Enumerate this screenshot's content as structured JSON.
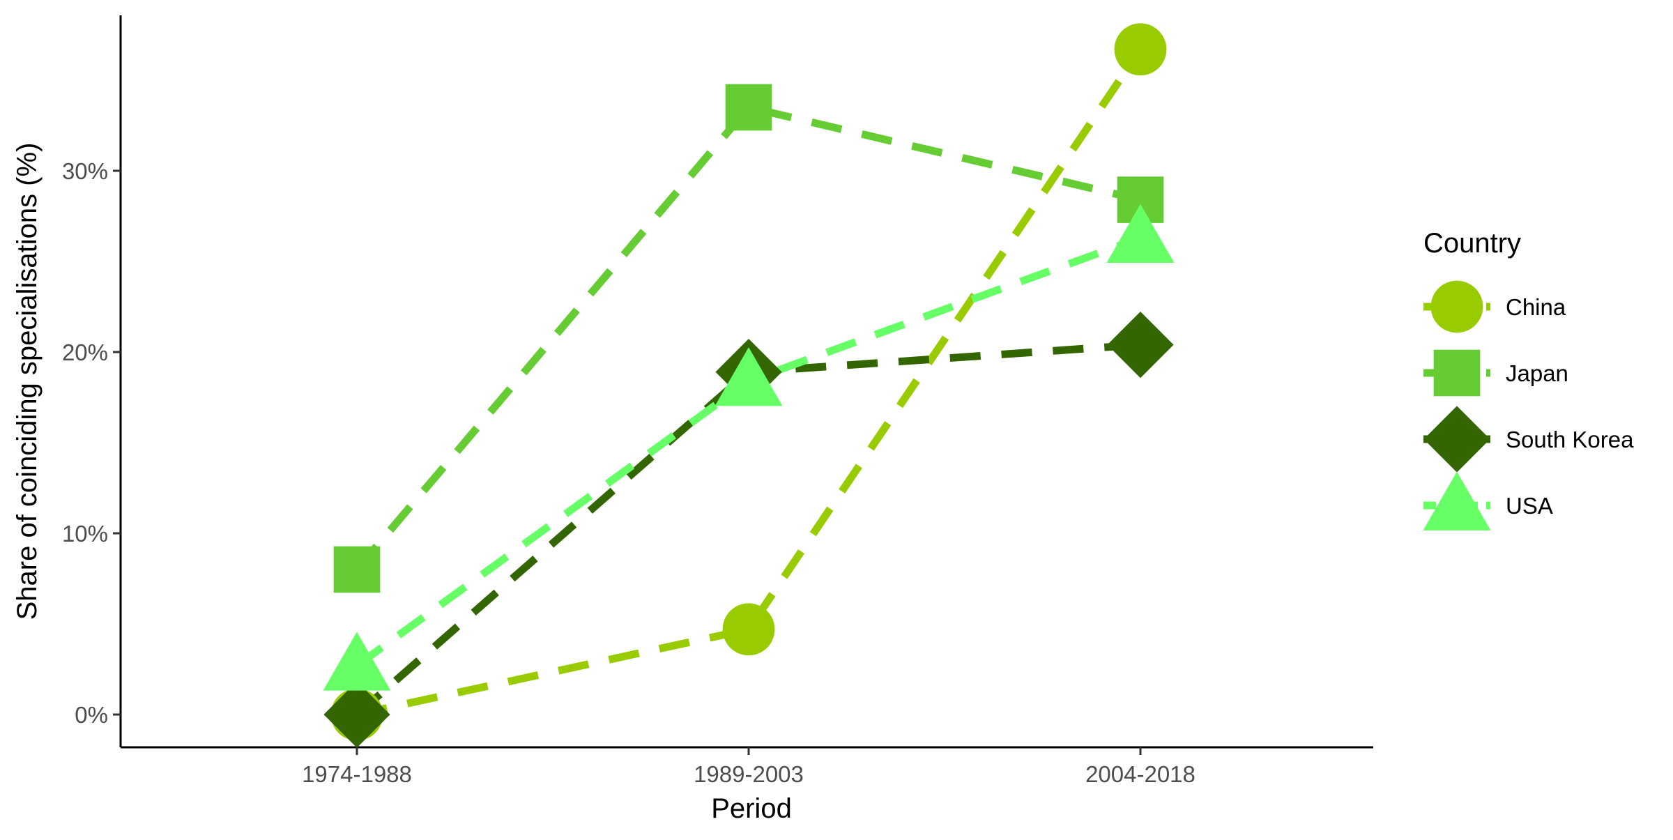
{
  "chart_data": {
    "type": "line",
    "xlabel": "Period",
    "ylabel": "Share of coinciding specialisations (%)",
    "categories": [
      "1974-1988",
      "1989-2003",
      "2004-2018"
    ],
    "ylim": [
      -1.9,
      38.5
    ],
    "yticks": [
      0,
      10,
      20,
      30
    ],
    "ytick_labels": [
      "0%",
      "10%",
      "20%",
      "30%"
    ],
    "grid": false,
    "legend": {
      "title": "Country",
      "placement": "right"
    },
    "series": [
      {
        "name": "China",
        "values": [
          0.0,
          4.7,
          36.7
        ],
        "color": "#99CC00",
        "shape": "circle"
      },
      {
        "name": "Japan",
        "values": [
          8.0,
          33.5,
          28.4
        ],
        "color": "#66CC33",
        "shape": "square"
      },
      {
        "name": "South Korea",
        "values": [
          0.0,
          18.9,
          20.4
        ],
        "color": "#336600",
        "shape": "diamond"
      },
      {
        "name": "USA",
        "values": [
          2.7,
          18.4,
          26.3
        ],
        "color": "#66FF66",
        "shape": "triangle"
      }
    ]
  }
}
